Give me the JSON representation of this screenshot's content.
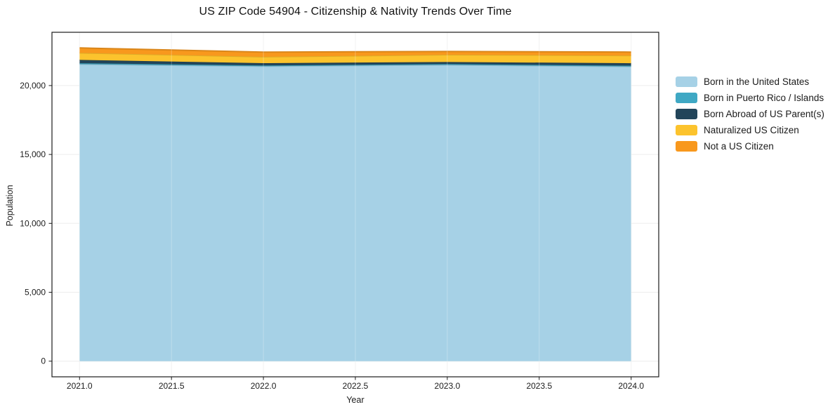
{
  "title": "US ZIP Code 54904 - Citizenship & Nativity Trends Over Time",
  "chart_data": {
    "type": "area",
    "stacked": true,
    "title": "US ZIP Code 54904 - Citizenship & Nativity Trends Over Time",
    "xlabel": "Year",
    "ylabel": "Population",
    "x": [
      2021,
      2022,
      2023,
      2024
    ],
    "series": [
      {
        "name": "Born in the United States",
        "color": "#a6d1e6",
        "values": [
          21550,
          21400,
          21500,
          21380
        ]
      },
      {
        "name": "Born in Puerto Rico / Islands",
        "color": "#3fa8c4",
        "values": [
          70,
          60,
          60,
          65
        ]
      },
      {
        "name": "Born Abroad of US Parent(s)",
        "color": "#22455a",
        "values": [
          240,
          165,
          150,
          175
        ]
      },
      {
        "name": "Naturalized US Citizen",
        "color": "#fcc32d",
        "values": [
          510,
          460,
          525,
          560
        ]
      },
      {
        "name": "Not a US Citizen",
        "color": "#f8981d",
        "values": [
          360,
          340,
          240,
          250
        ]
      }
    ],
    "xlim": [
      2020.85,
      2024.15
    ],
    "ylim": [
      -1136,
      23866
    ],
    "xticks": [
      2021.0,
      2021.5,
      2022.0,
      2022.5,
      2023.0,
      2023.5,
      2024.0
    ],
    "yticks": [
      0,
      5000,
      10000,
      15000,
      20000
    ],
    "grid": true,
    "legend_position": "right-outside",
    "colors": {
      "grid": "#ededed",
      "axis_border": "#1a1a1a",
      "tick_text": "#1c1c1c"
    }
  }
}
